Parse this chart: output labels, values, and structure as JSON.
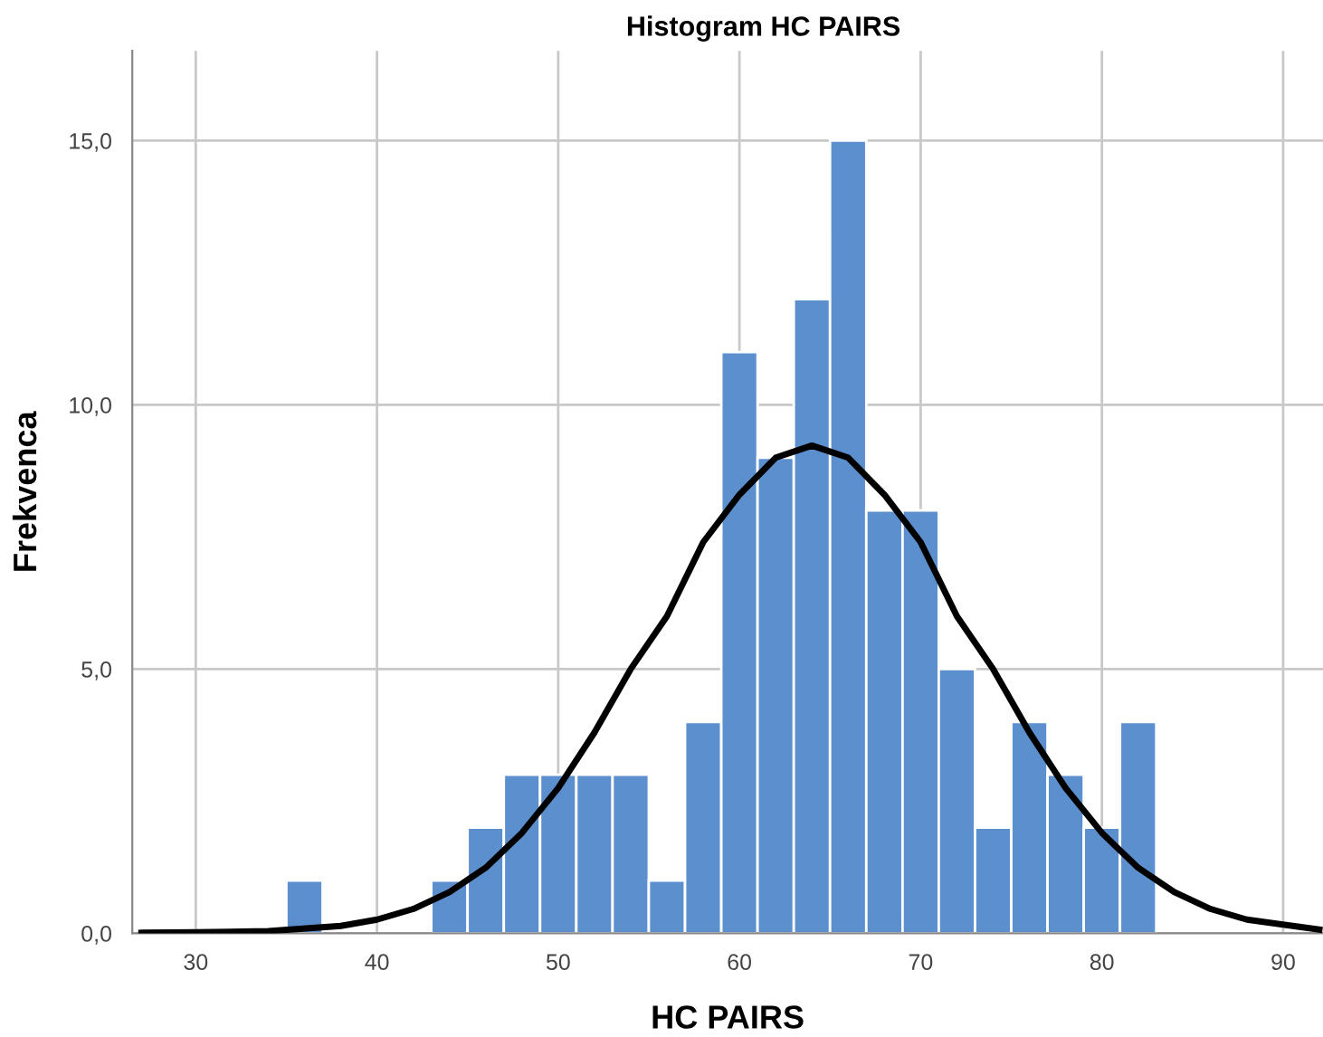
{
  "chart_data": {
    "type": "histogram",
    "title": "Histogram HC PAIRS",
    "xlabel": "HC PAIRS",
    "ylabel": "Frekvenca",
    "bins": [
      35,
      37,
      39,
      41,
      43,
      45,
      47,
      49,
      51,
      53,
      55,
      57,
      59,
      61,
      63,
      65,
      67,
      69,
      71,
      73,
      75,
      77,
      79,
      81,
      83
    ],
    "values": [
      1,
      0,
      0,
      0,
      1,
      2,
      3,
      3,
      3,
      3,
      1,
      4,
      11,
      9,
      12,
      15,
      8,
      8,
      5,
      2,
      4,
      3,
      2,
      4
    ],
    "color": "#5b8fcd",
    "series": [
      {
        "type": "line",
        "color": "#000000",
        "x": [
          27,
          30,
          34,
          38,
          40,
          42,
          44,
          46,
          48,
          50,
          52,
          54,
          56,
          58,
          60,
          62,
          64,
          66,
          68,
          70,
          72,
          74,
          76,
          78,
          80,
          82,
          84,
          86,
          88,
          92
        ],
        "values": [
          0.01,
          0.02,
          0.04,
          0.14,
          0.26,
          0.46,
          0.78,
          1.24,
          1.9,
          2.75,
          3.8,
          5.0,
          6.0,
          7.4,
          8.3,
          9.0,
          9.23,
          9.0,
          8.3,
          7.4,
          6.0,
          5.0,
          3.8,
          2.75,
          1.9,
          1.24,
          0.78,
          0.46,
          0.26,
          0.07
        ]
      }
    ],
    "xlim": [
      26.5,
      92.2
    ],
    "ylim": [
      0,
      16.7
    ],
    "xticks": [
      30,
      40,
      50,
      60,
      70,
      80,
      90
    ],
    "yticks": [
      {
        "value": 0,
        "label": "0,0"
      },
      {
        "value": 5,
        "label": "5,0"
      },
      {
        "value": 10,
        "label": "10,0"
      },
      {
        "value": 15,
        "label": "15,0"
      }
    ],
    "grid": true
  }
}
